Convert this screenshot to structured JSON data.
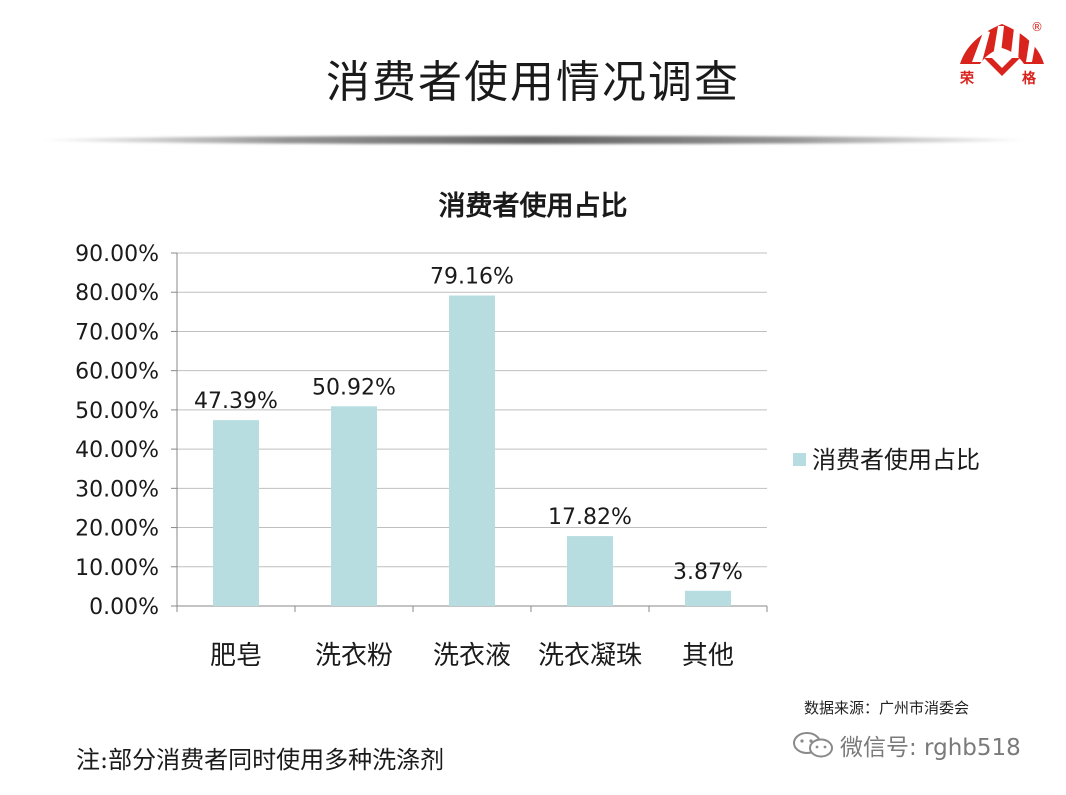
{
  "slide": {
    "title": "消费者使用情况调查",
    "source": "数据来源：广州市消委会",
    "note": "注:部分消费者同时使用多种洗涤剂",
    "watermark": "微信号: rghb518",
    "logo_chars": [
      "荣",
      "格"
    ],
    "logo_mark": "®"
  },
  "colors": {
    "bar": "#b7dde0",
    "logo_red": "#d9231d",
    "grid": "#bfbfbf",
    "text": "#1a1a1a"
  },
  "chart_data": {
    "type": "bar",
    "title": "消费者使用占比",
    "categories": [
      "肥皂",
      "洗衣粉",
      "洗衣液",
      "洗衣凝珠",
      "其他"
    ],
    "series": [
      {
        "name": "消费者使用占比",
        "values": [
          47.39,
          50.92,
          79.16,
          17.82,
          3.87
        ],
        "labels": [
          "47.39%",
          "50.92%",
          "79.16%",
          "17.82%",
          "3.87%"
        ]
      }
    ],
    "ylim": [
      0,
      90
    ],
    "yticks": [
      "0.00%",
      "10.00%",
      "20.00%",
      "30.00%",
      "40.00%",
      "50.00%",
      "60.00%",
      "70.00%",
      "80.00%",
      "90.00%"
    ],
    "grid": true,
    "legend": "right"
  }
}
